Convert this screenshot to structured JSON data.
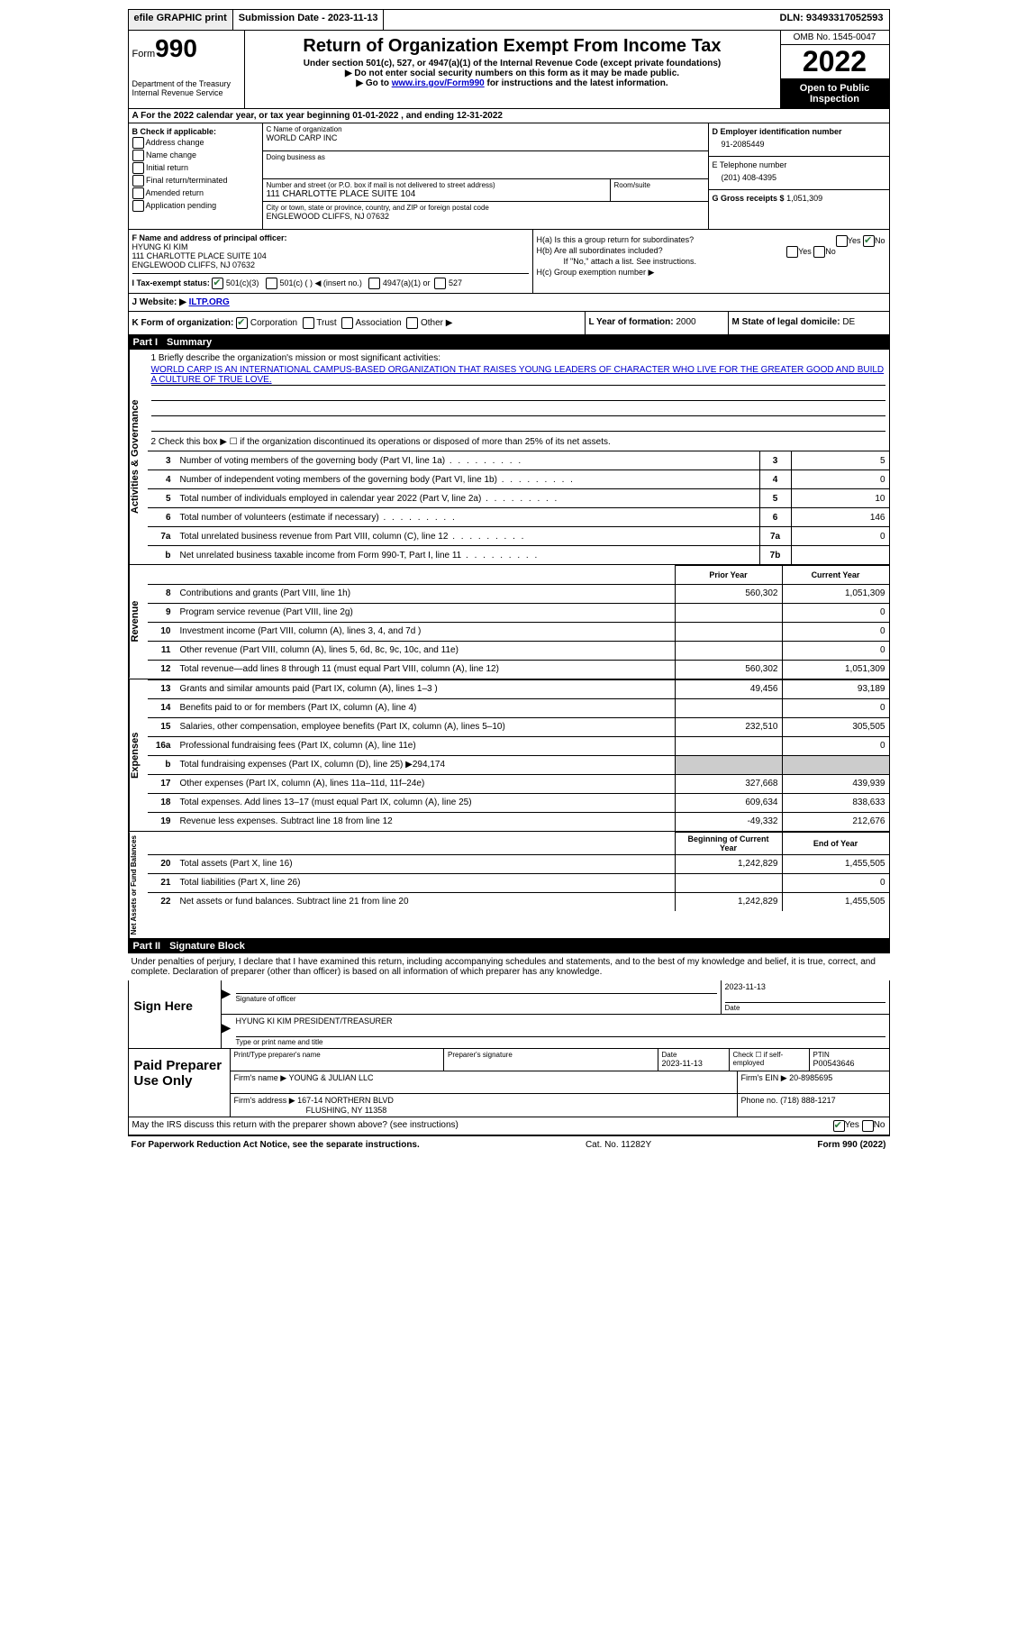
{
  "top": {
    "efile": "efile GRAPHIC print",
    "sub_date_lbl": "Submission Date - 2023-11-13",
    "dln": "DLN: 93493317052593"
  },
  "header": {
    "form_word": "Form",
    "form_num": "990",
    "dept": "Department of the Treasury Internal Revenue Service",
    "title": "Return of Organization Exempt From Income Tax",
    "sub1": "Under section 501(c), 527, or 4947(a)(1) of the Internal Revenue Code (except private foundations)",
    "sub2": "▶ Do not enter social security numbers on this form as it may be made public.",
    "sub3_pre": "▶ Go to ",
    "sub3_link": "www.irs.gov/Form990",
    "sub3_post": " for instructions and the latest information.",
    "omb": "OMB No. 1545-0047",
    "year": "2022",
    "open": "Open to Public Inspection"
  },
  "a": "A For the 2022 calendar year, or tax year beginning 01-01-2022    , and ending 12-31-2022",
  "b": {
    "lbl": "B Check if applicable:",
    "opts": [
      "Address change",
      "Name change",
      "Initial return",
      "Final return/terminated",
      "Amended return",
      "Application pending"
    ]
  },
  "c": {
    "name_lbl": "C Name of organization",
    "name": "WORLD CARP INC",
    "dba_lbl": "Doing business as",
    "street_lbl": "Number and street (or P.O. box if mail is not delivered to street address)",
    "street": "111 CHARLOTTE PLACE SUITE 104",
    "room_lbl": "Room/suite",
    "city_lbl": "City or town, state or province, country, and ZIP or foreign postal code",
    "city": "ENGLEWOOD CLIFFS, NJ  07632"
  },
  "d": {
    "ein_lbl": "D Employer identification number",
    "ein": "91-2085449",
    "phone_lbl": "E Telephone number",
    "phone": "(201) 408-4395",
    "gross_lbl": "G Gross receipts $",
    "gross": "1,051,309"
  },
  "f": {
    "lbl": "F Name and address of principal officer:",
    "name": "HYUNG KI KIM",
    "addr1": "111 CHARLOTTE PLACE SUITE 104",
    "addr2": "ENGLEWOOD CLIFFS, NJ  07632"
  },
  "h": {
    "a": "H(a)  Is this a group return for subordinates?",
    "b": "H(b)  Are all subordinates included?",
    "b_note": "If \"No,\" attach a list. See instructions.",
    "c": "H(c)  Group exemption number ▶"
  },
  "i": {
    "lbl": "I   Tax-exempt status:",
    "o1": "501(c)(3)",
    "o2": "501(c) (  ) ◀ (insert no.)",
    "o3": "4947(a)(1) or",
    "o4": "527"
  },
  "j": {
    "lbl": "J   Website: ▶",
    "val": "ILTP.ORG"
  },
  "k": "K Form of organization:",
  "k_opts": [
    "Corporation",
    "Trust",
    "Association",
    "Other ▶"
  ],
  "l": {
    "lbl": "L Year of formation:",
    "val": "2000"
  },
  "m": {
    "lbl": "M State of legal domicile:",
    "val": "DE"
  },
  "part1": {
    "hdr": "Part I",
    "title": "Summary",
    "line1_lbl": "1  Briefly describe the organization's mission or most significant activities:",
    "line1_txt": "WORLD CARP IS AN INTERNATIONAL CAMPUS-BASED ORGANIZATION THAT RAISES YOUNG LEADERS OF CHARACTER WHO LIVE FOR THE GREATER GOOD AND BUILD A CULTURE OF TRUE LOVE.",
    "line2": "2  Check this box ▶ ☐ if the organization discontinued its operations or disposed of more than 25% of its net assets.",
    "rows_ag": [
      {
        "n": "3",
        "t": "Number of voting members of the governing body (Part VI, line 1a)",
        "k": "3",
        "v": "5"
      },
      {
        "n": "4",
        "t": "Number of independent voting members of the governing body (Part VI, line 1b)",
        "k": "4",
        "v": "0"
      },
      {
        "n": "5",
        "t": "Total number of individuals employed in calendar year 2022 (Part V, line 2a)",
        "k": "5",
        "v": "10"
      },
      {
        "n": "6",
        "t": "Total number of volunteers (estimate if necessary)",
        "k": "6",
        "v": "146"
      },
      {
        "n": "7a",
        "t": "Total unrelated business revenue from Part VIII, column (C), line 12",
        "k": "7a",
        "v": "0"
      },
      {
        "n": "b",
        "t": "Net unrelated business taxable income from Form 990-T, Part I, line 11",
        "k": "7b",
        "v": ""
      }
    ],
    "py_hdr": "Prior Year",
    "cy_hdr": "Current Year",
    "rows_rev": [
      {
        "n": "8",
        "t": "Contributions and grants (Part VIII, line 1h)",
        "py": "560,302",
        "cy": "1,051,309"
      },
      {
        "n": "9",
        "t": "Program service revenue (Part VIII, line 2g)",
        "py": "",
        "cy": "0"
      },
      {
        "n": "10",
        "t": "Investment income (Part VIII, column (A), lines 3, 4, and 7d )",
        "py": "",
        "cy": "0"
      },
      {
        "n": "11",
        "t": "Other revenue (Part VIII, column (A), lines 5, 6d, 8c, 9c, 10c, and 11e)",
        "py": "",
        "cy": "0"
      },
      {
        "n": "12",
        "t": "Total revenue—add lines 8 through 11 (must equal Part VIII, column (A), line 12)",
        "py": "560,302",
        "cy": "1,051,309"
      }
    ],
    "rows_exp": [
      {
        "n": "13",
        "t": "Grants and similar amounts paid (Part IX, column (A), lines 1–3 )",
        "py": "49,456",
        "cy": "93,189"
      },
      {
        "n": "14",
        "t": "Benefits paid to or for members (Part IX, column (A), line 4)",
        "py": "",
        "cy": "0"
      },
      {
        "n": "15",
        "t": "Salaries, other compensation, employee benefits (Part IX, column (A), lines 5–10)",
        "py": "232,510",
        "cy": "305,505"
      },
      {
        "n": "16a",
        "t": "Professional fundraising fees (Part IX, column (A), line 11e)",
        "py": "",
        "cy": "0"
      },
      {
        "n": "b",
        "t": "Total fundraising expenses (Part IX, column (D), line 25) ▶294,174",
        "py": "SHADE",
        "cy": "SHADE"
      },
      {
        "n": "17",
        "t": "Other expenses (Part IX, column (A), lines 11a–11d, 11f–24e)",
        "py": "327,668",
        "cy": "439,939"
      },
      {
        "n": "18",
        "t": "Total expenses. Add lines 13–17 (must equal Part IX, column (A), line 25)",
        "py": "609,634",
        "cy": "838,633"
      },
      {
        "n": "19",
        "t": "Revenue less expenses. Subtract line 18 from line 12",
        "py": "-49,332",
        "cy": "212,676"
      }
    ],
    "na_hdr1": "Beginning of Current Year",
    "na_hdr2": "End of Year",
    "rows_na": [
      {
        "n": "20",
        "t": "Total assets (Part X, line 16)",
        "py": "1,242,829",
        "cy": "1,455,505"
      },
      {
        "n": "21",
        "t": "Total liabilities (Part X, line 26)",
        "py": "",
        "cy": "0"
      },
      {
        "n": "22",
        "t": "Net assets or fund balances. Subtract line 21 from line 20",
        "py": "1,242,829",
        "cy": "1,455,505"
      }
    ],
    "side_ag": "Activities & Governance",
    "side_rev": "Revenue",
    "side_exp": "Expenses",
    "side_na": "Net Assets or Fund Balances"
  },
  "part2": {
    "hdr": "Part II",
    "title": "Signature Block",
    "decl": "Under penalties of perjury, I declare that I have examined this return, including accompanying schedules and statements, and to the best of my knowledge and belief, it is true, correct, and complete. Declaration of preparer (other than officer) is based on all information of which preparer has any knowledge."
  },
  "sign": {
    "here": "Sign Here",
    "sig_lbl": "Signature of officer",
    "date": "2023-11-13",
    "date_lbl": "Date",
    "name": "HYUNG KI KIM  PRESIDENT/TREASURER",
    "name_lbl": "Type or print name and title"
  },
  "prep": {
    "title": "Paid Preparer Use Only",
    "name_lbl": "Print/Type preparer's name",
    "sig_lbl": "Preparer's signature",
    "date_lbl": "Date",
    "date": "2023-11-13",
    "check_lbl": "Check ☐ if self-employed",
    "ptin_lbl": "PTIN",
    "ptin": "P00543646",
    "firm_name_lbl": "Firm's name    ▶",
    "firm_name": "YOUNG & JULIAN LLC",
    "firm_ein_lbl": "Firm's EIN ▶",
    "firm_ein": "20-8985695",
    "firm_addr_lbl": "Firm's address ▶",
    "firm_addr1": "167-14 NORTHERN BLVD",
    "firm_addr2": "FLUSHING, NY  11358",
    "phone_lbl": "Phone no.",
    "phone": "(718) 888-1217"
  },
  "footer": {
    "q": "May the IRS discuss this return with the preparer shown above? (see instructions)",
    "yes": "Yes",
    "no": "No",
    "pra": "For Paperwork Reduction Act Notice, see the separate instructions.",
    "cat": "Cat. No. 11282Y",
    "form": "Form 990 (2022)"
  }
}
